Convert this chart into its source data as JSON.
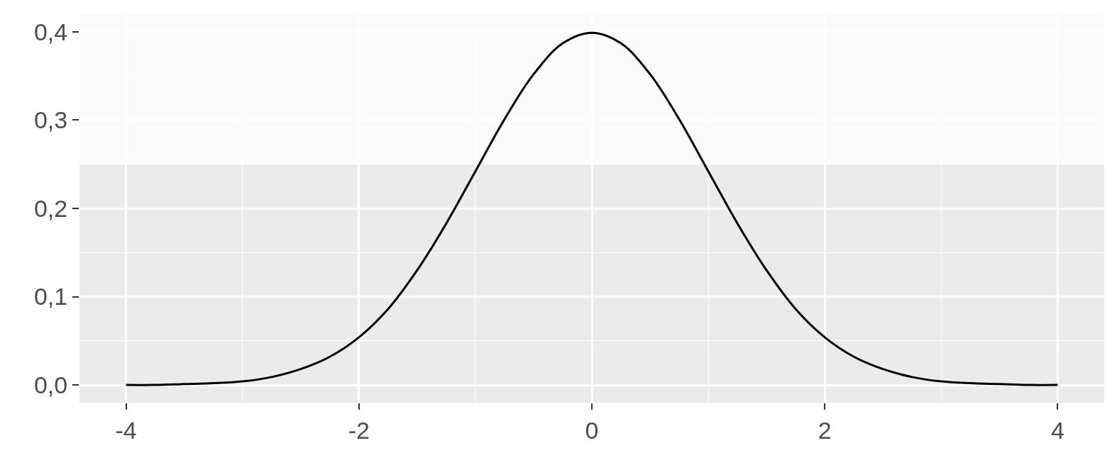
{
  "chart_data": {
    "type": "line",
    "x": [
      -4,
      -3.75,
      -3.5,
      -3.25,
      -3,
      -2.75,
      -2.5,
      -2.25,
      -2,
      -1.75,
      -1.5,
      -1.25,
      -1,
      -0.75,
      -0.5,
      -0.25,
      0,
      0.25,
      0.5,
      0.75,
      1,
      1.25,
      1.5,
      1.75,
      2,
      2.25,
      2.5,
      2.75,
      3,
      3.25,
      3.5,
      3.75,
      4
    ],
    "series": [
      {
        "color": "#000000",
        "values": [
          0.0,
          0.0,
          0.001,
          0.002,
          0.004,
          0.009,
          0.018,
          0.032,
          0.054,
          0.086,
          0.13,
          0.183,
          0.242,
          0.301,
          0.352,
          0.387,
          0.399,
          0.387,
          0.352,
          0.301,
          0.242,
          0.183,
          0.13,
          0.086,
          0.054,
          0.032,
          0.018,
          0.009,
          0.004,
          0.002,
          0.001,
          0.0,
          0.0
        ]
      }
    ],
    "xlim": [
      -4.4,
      4.4
    ],
    "xticks": [
      -4,
      -2,
      0,
      2,
      4
    ],
    "ylim": [
      -0.02,
      0.42
    ],
    "yticks": [
      {
        "value": 0,
        "label": "0,0"
      },
      {
        "value": 0.1,
        "label": "0,1"
      },
      {
        "value": 0.2,
        "label": "0,2"
      },
      {
        "value": 0.3,
        "label": "0,3"
      },
      {
        "value": 0.4,
        "label": "0,4"
      }
    ],
    "bands": [
      {
        "axis": "y",
        "from": 0.25,
        "to": 0.42,
        "color": "#ffffff"
      }
    ],
    "grid": true,
    "line_style": "solid"
  }
}
